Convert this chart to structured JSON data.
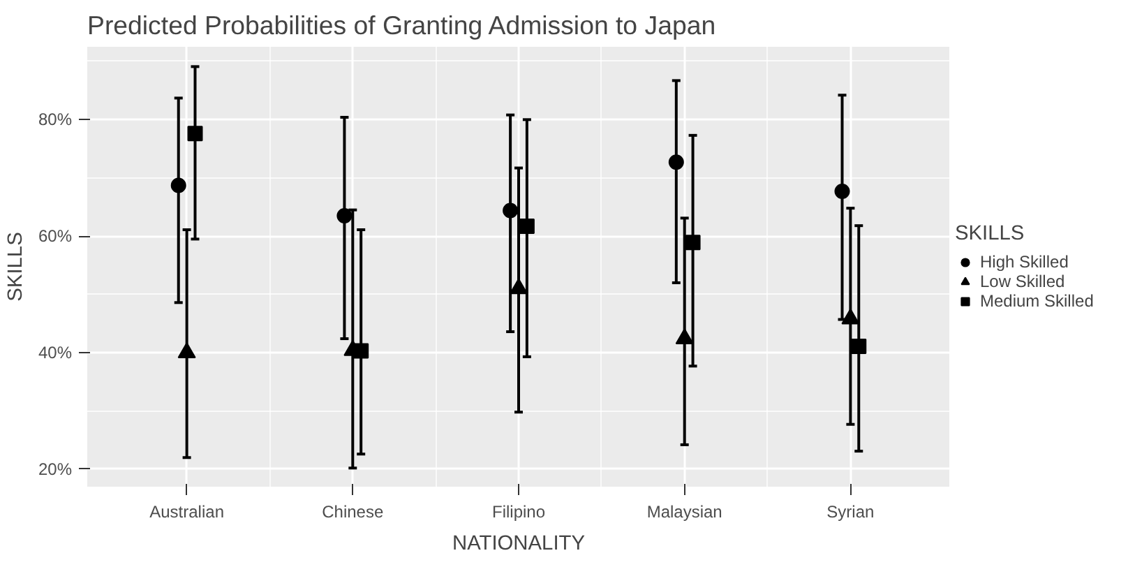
{
  "chart_data": {
    "type": "scatter",
    "title": "Predicted Probabilities of Granting Admission to Japan",
    "xlabel": "NATIONALITY",
    "ylabel": "SKILLS",
    "legend_title": "SKILLS",
    "categories": [
      "Australian",
      "Chinese",
      "Filipino",
      "Malaysian",
      "Syrian"
    ],
    "series": [
      {
        "name": "High Skilled",
        "color": "#000000",
        "marker": "circle",
        "values": [
          68.7,
          63.5,
          64.4,
          72.7,
          67.7
        ],
        "errors": [
          [
            48.6,
            83.7
          ],
          [
            42.4,
            80.4
          ],
          [
            43.6,
            80.8
          ],
          [
            52.0,
            86.7
          ],
          [
            45.7,
            84.2
          ]
        ]
      },
      {
        "name": "Low Skilled",
        "color": "#000000",
        "marker": "triangle",
        "values": [
          40.0,
          40.4,
          51.0,
          42.4,
          45.8
        ],
        "errors": [
          [
            22.0,
            61.1
          ],
          [
            20.2,
            64.5
          ],
          [
            29.8,
            71.7
          ],
          [
            24.2,
            63.1
          ],
          [
            27.7,
            64.8
          ]
        ]
      },
      {
        "name": "Medium Skilled",
        "color": "#000000",
        "marker": "square",
        "values": [
          77.6,
          40.3,
          61.7,
          58.9,
          41.1
        ],
        "errors": [
          [
            59.5,
            89.1
          ],
          [
            22.6,
            61.1
          ],
          [
            39.3,
            80.0
          ],
          [
            37.7,
            77.3
          ],
          [
            23.1,
            61.8
          ]
        ]
      }
    ],
    "ylim": [
      17,
      92.5
    ],
    "yticks": [
      {
        "value": 20,
        "label": "20%"
      },
      {
        "value": 40,
        "label": "40%"
      },
      {
        "value": 60,
        "label": "60%"
      },
      {
        "value": 80,
        "label": "80%"
      }
    ],
    "grid": true,
    "legend": "right"
  }
}
